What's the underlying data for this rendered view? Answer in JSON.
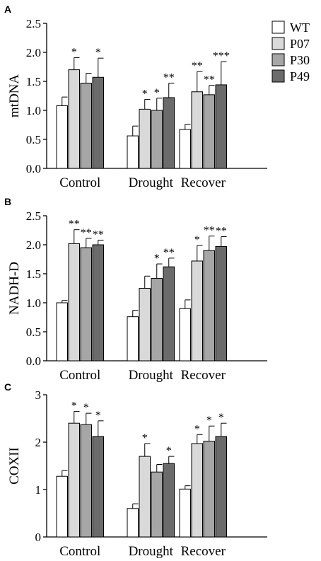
{
  "legend": [
    {
      "name": "WT",
      "color": "#ffffff"
    },
    {
      "name": "P07",
      "color": "#d9d9d9"
    },
    {
      "name": "P30",
      "color": "#a6a6a6"
    },
    {
      "name": "P49",
      "color": "#6b6b6b"
    }
  ],
  "chart_data": [
    {
      "type": "bar",
      "panel": "A",
      "ylabel": "mtDNA",
      "ylim": [
        0,
        2.5
      ],
      "yticks": [
        "0.0",
        "0.5",
        "1.0",
        "1.5",
        "2.0",
        "2.5"
      ],
      "categories": [
        "Control",
        "Drought",
        "Recover"
      ],
      "series": [
        {
          "name": "WT",
          "values": [
            1.08,
            0.56,
            0.67
          ],
          "errors": [
            0.15,
            0.17,
            0.09
          ],
          "sig": [
            "",
            "",
            ""
          ]
        },
        {
          "name": "P07",
          "values": [
            1.7,
            1.02,
            1.32
          ],
          "errors": [
            0.21,
            0.17,
            0.35
          ],
          "sig": [
            "*",
            "*",
            "**"
          ]
        },
        {
          "name": "P30",
          "values": [
            1.47,
            1.0,
            1.27
          ],
          "errors": [
            0.17,
            0.21,
            0.16
          ],
          "sig": [
            "",
            "*",
            "**"
          ]
        },
        {
          "name": "P49",
          "values": [
            1.57,
            1.22,
            1.44
          ],
          "errors": [
            0.33,
            0.25,
            0.4
          ],
          "sig": [
            "*",
            "**",
            "***"
          ]
        }
      ]
    },
    {
      "type": "bar",
      "panel": "B",
      "ylabel": "NADH-D",
      "ylim": [
        0,
        2.5
      ],
      "yticks": [
        "0.0",
        "0.5",
        "1.0",
        "1.5",
        "2.0",
        "2.5"
      ],
      "categories": [
        "Control",
        "Drought",
        "Recover"
      ],
      "series": [
        {
          "name": "WT",
          "values": [
            1.0,
            0.76,
            0.9
          ],
          "errors": [
            0.04,
            0.11,
            0.15
          ],
          "sig": [
            "",
            "",
            ""
          ]
        },
        {
          "name": "P07",
          "values": [
            2.02,
            1.25,
            1.72
          ],
          "errors": [
            0.24,
            0.21,
            0.27
          ],
          "sig": [
            "**",
            "",
            "*"
          ]
        },
        {
          "name": "P30",
          "values": [
            1.95,
            1.42,
            1.9
          ],
          "errors": [
            0.16,
            0.25,
            0.25
          ],
          "sig": [
            "**",
            "*",
            "**"
          ]
        },
        {
          "name": "P49",
          "values": [
            2.0,
            1.62,
            1.97
          ],
          "errors": [
            0.08,
            0.15,
            0.17
          ],
          "sig": [
            "**",
            "**",
            "**"
          ]
        }
      ]
    },
    {
      "type": "bar",
      "panel": "C",
      "ylabel": "COXII",
      "ylim": [
        0,
        3
      ],
      "yticks": [
        "0",
        "1",
        "2",
        "3"
      ],
      "categories": [
        "Control",
        "Drought",
        "Recover"
      ],
      "series": [
        {
          "name": "WT",
          "values": [
            1.28,
            0.6,
            1.01
          ],
          "errors": [
            0.12,
            0.1,
            0.07
          ],
          "sig": [
            "",
            "",
            ""
          ]
        },
        {
          "name": "P07",
          "values": [
            2.4,
            1.7,
            1.97
          ],
          "errors": [
            0.25,
            0.27,
            0.19
          ],
          "sig": [
            "*",
            "*",
            "*"
          ]
        },
        {
          "name": "P30",
          "values": [
            2.37,
            1.37,
            2.02
          ],
          "errors": [
            0.24,
            0.16,
            0.32
          ],
          "sig": [
            "*",
            "",
            "*"
          ]
        },
        {
          "name": "P49",
          "values": [
            2.12,
            1.55,
            2.12
          ],
          "errors": [
            0.33,
            0.15,
            0.28
          ],
          "sig": [
            "*",
            "*",
            "*"
          ]
        }
      ]
    }
  ]
}
